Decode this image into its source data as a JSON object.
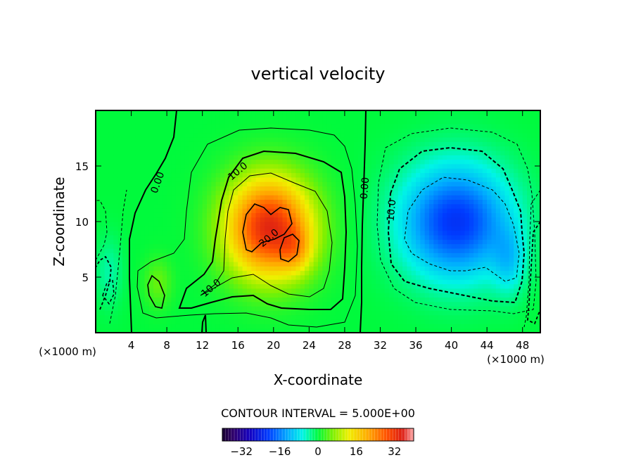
{
  "chart_data": {
    "type": "heatmap",
    "title": "vertical velocity",
    "xlabel": "X-coordinate",
    "ylabel": "Z-coordinate",
    "x_unit_left": "(×1000 m)",
    "x_unit_right": "(×1000 m)",
    "xlim": [
      0,
      50
    ],
    "ylim": [
      0,
      20
    ],
    "xticks": [
      4,
      8,
      12,
      16,
      20,
      24,
      28,
      32,
      36,
      40,
      44,
      48
    ],
    "yticks": [
      5,
      10,
      15
    ],
    "contour_interval_text": "CONTOUR INTERVAL = 5.000E+00",
    "contour_interval": 5,
    "colorbar": {
      "vmin": -40,
      "vmax": 40,
      "ticks": [
        -32,
        -16,
        0,
        16,
        32
      ]
    },
    "contour_labels": [
      {
        "text": "0.00",
        "x": 7,
        "z": 13.5,
        "angle": -70
      },
      {
        "text": "10.0",
        "x": 16,
        "z": 14.5,
        "angle": -40
      },
      {
        "text": "20.0",
        "x": 19.5,
        "z": 8.5,
        "angle": -40
      },
      {
        "text": "10.0",
        "x": 13,
        "z": 4,
        "angle": -40
      },
      {
        "text": "0.00",
        "x": 30.3,
        "z": 13,
        "angle": -85
      },
      {
        "text": "10.0",
        "x": 33.3,
        "z": 11,
        "angle": -85
      }
    ],
    "features": {
      "updraft_max": {
        "x": 19,
        "z": 9.5,
        "value": 32
      },
      "updraft_secondary": {
        "x": 22.5,
        "z": 7.5,
        "value": 24
      },
      "downdraft_min": {
        "x": 40,
        "z": 10,
        "value": -20
      },
      "downdraft_secondary": {
        "x": 46.5,
        "z": 7,
        "value": -18
      }
    }
  }
}
